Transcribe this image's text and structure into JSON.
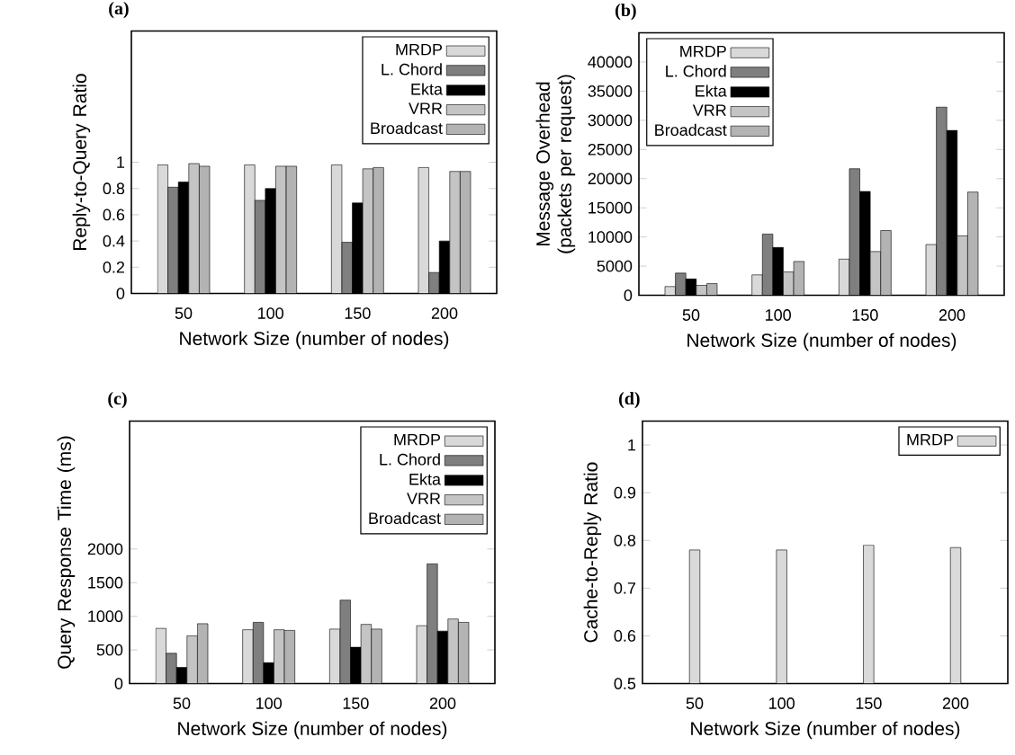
{
  "chart_data": [
    {
      "type": "bar",
      "title": "(a)",
      "xlabel": "Network Size (number of nodes)",
      "ylabel": "Reply-to-Query Ratio",
      "categories": [
        "50",
        "100",
        "150",
        "200"
      ],
      "ylim": [
        0,
        2
      ],
      "yticks": [
        0,
        0.2,
        0.4,
        0.6,
        0.8,
        1
      ],
      "legend": "top right",
      "series": [
        {
          "name": "MRDP",
          "color": "#d9d9d9",
          "values": [
            0.98,
            0.98,
            0.98,
            0.96
          ]
        },
        {
          "name": "L. Chord",
          "color": "#7f7f7f",
          "values": [
            0.81,
            0.71,
            0.39,
            0.16
          ]
        },
        {
          "name": "Ekta",
          "color": "#000000",
          "values": [
            0.85,
            0.8,
            0.69,
            0.4
          ]
        },
        {
          "name": "VRR",
          "color": "#c4c4c4",
          "values": [
            0.99,
            0.97,
            0.95,
            0.93
          ]
        },
        {
          "name": "Broadcast",
          "color": "#b3b3b3",
          "values": [
            0.97,
            0.97,
            0.96,
            0.93
          ]
        }
      ]
    },
    {
      "type": "bar",
      "title": "(b)",
      "xlabel": "Network Size (number of nodes)",
      "ylabel": "Message Overhead (packets per request)",
      "categories": [
        "50",
        "100",
        "150",
        "200"
      ],
      "ylim": [
        0,
        45000
      ],
      "yticks": [
        0,
        5000,
        10000,
        15000,
        20000,
        25000,
        30000,
        35000,
        40000
      ],
      "legend": "top left",
      "series": [
        {
          "name": "MRDP",
          "color": "#d9d9d9",
          "values": [
            1500,
            3500,
            6200,
            8700
          ]
        },
        {
          "name": "L. Chord",
          "color": "#7f7f7f",
          "values": [
            3800,
            10500,
            21700,
            32300
          ]
        },
        {
          "name": "Ekta",
          "color": "#000000",
          "values": [
            2800,
            8200,
            17800,
            28300
          ]
        },
        {
          "name": "VRR",
          "color": "#c4c4c4",
          "values": [
            1700,
            4000,
            7500,
            10200
          ]
        },
        {
          "name": "Broadcast",
          "color": "#b3b3b3",
          "values": [
            2000,
            5800,
            11100,
            17700
          ]
        }
      ]
    },
    {
      "type": "bar",
      "title": "(c)",
      "xlabel": "Network Size (number of nodes)",
      "ylabel": "Query Response Time (ms)",
      "categories": [
        "50",
        "100",
        "150",
        "200"
      ],
      "ylim": [
        0,
        3900
      ],
      "yticks": [
        0,
        500,
        1000,
        1500,
        2000
      ],
      "legend": "top right",
      "series": [
        {
          "name": "MRDP",
          "color": "#d9d9d9",
          "values": [
            820,
            800,
            810,
            860
          ]
        },
        {
          "name": "L. Chord",
          "color": "#7f7f7f",
          "values": [
            450,
            910,
            1240,
            1780
          ]
        },
        {
          "name": "Ekta",
          "color": "#000000",
          "values": [
            240,
            310,
            540,
            780
          ]
        },
        {
          "name": "VRR",
          "color": "#c4c4c4",
          "values": [
            710,
            800,
            880,
            960
          ]
        },
        {
          "name": "Broadcast",
          "color": "#b3b3b3",
          "values": [
            890,
            790,
            810,
            910
          ]
        }
      ]
    },
    {
      "type": "bar",
      "title": "(d)",
      "xlabel": "Network Size (number of nodes)",
      "ylabel": "Cache-to-Reply Ratio",
      "categories": [
        "50",
        "100",
        "150",
        "200"
      ],
      "ylim": [
        0.5,
        1.05
      ],
      "yticks": [
        0.5,
        0.6,
        0.7,
        0.8,
        0.9,
        1
      ],
      "legend": "top right",
      "series": [
        {
          "name": "MRDP",
          "color": "#d9d9d9",
          "values": [
            0.78,
            0.78,
            0.79,
            0.785
          ]
        }
      ]
    }
  ]
}
